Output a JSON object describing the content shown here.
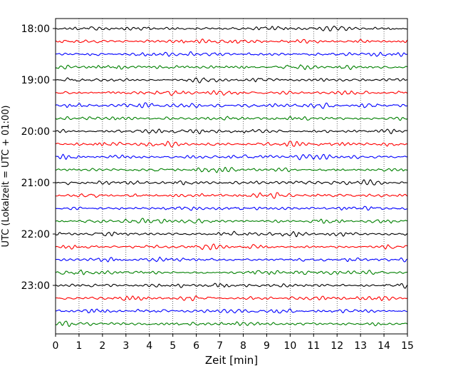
{
  "chart_data": {
    "type": "line",
    "title": "",
    "xlabel": "Zeit  [min]",
    "ylabel": "UTC (Lokalzeit = UTC + 01:00)",
    "xlim": [
      0,
      15
    ],
    "x_ticks": [
      0,
      1,
      2,
      3,
      4,
      5,
      6,
      7,
      8,
      9,
      10,
      11,
      12,
      13,
      14,
      15
    ],
    "x_tick_labels": [
      "0",
      "1",
      "2",
      "3",
      "4",
      "5",
      "6",
      "7",
      "8",
      "9",
      "10",
      "11",
      "12",
      "13",
      "14",
      "15"
    ],
    "y_tick_labels": [
      "18:00",
      "19:00",
      "20:00",
      "21:00",
      "22:00",
      "23:00"
    ],
    "rows_per_hour": 4,
    "row_start_times": [
      "18:00",
      "18:15",
      "18:30",
      "18:45",
      "19:00",
      "19:15",
      "19:30",
      "19:45",
      "20:00",
      "20:15",
      "20:30",
      "20:45",
      "21:00",
      "21:15",
      "21:30",
      "21:45",
      "22:00",
      "22:15",
      "22:30",
      "22:45",
      "23:00",
      "23:15",
      "23:30",
      "23:45"
    ],
    "trace_color_cycle": [
      "#000000",
      "#ff0000",
      "#0000ff",
      "#008000"
    ],
    "grid": "vertical dotted lines at each minute",
    "legend": "none"
  }
}
